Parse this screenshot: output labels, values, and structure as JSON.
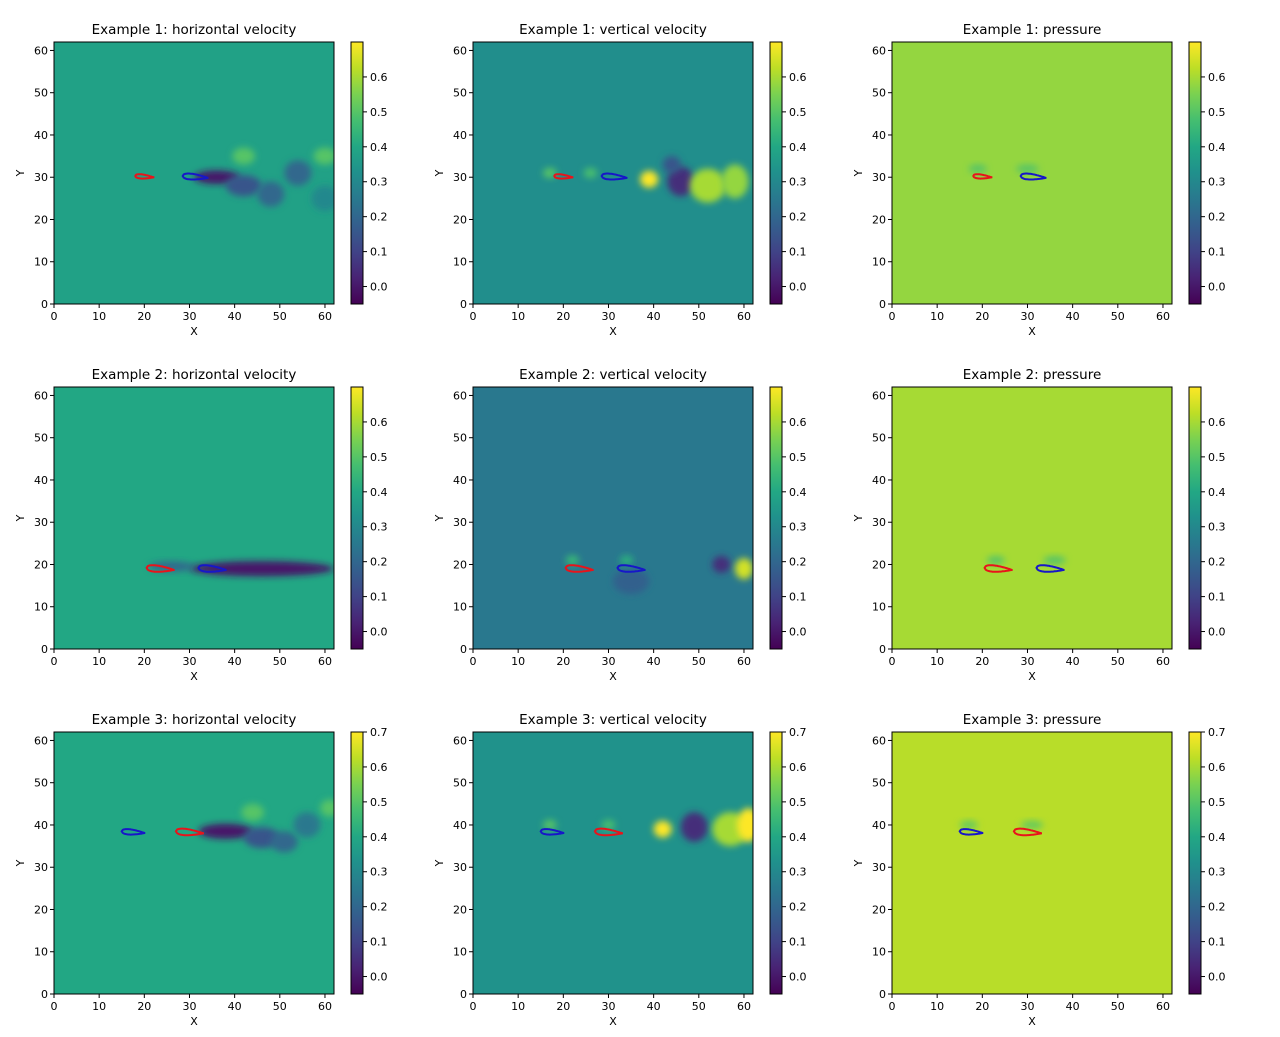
{
  "figure": {
    "xlabel": "X",
    "ylabel": "Y",
    "colormap": "viridis",
    "airfoil_colors": {
      "red": "#e8141b",
      "blue": "#1717c8"
    }
  },
  "chart_data": [
    {
      "type": "heatmap",
      "title": "Example 1: horizontal velocity",
      "xlim": [
        0,
        62
      ],
      "ylim": [
        0,
        62
      ],
      "xticks": [
        0,
        10,
        20,
        30,
        40,
        50,
        60
      ],
      "yticks": [
        0,
        10,
        20,
        30,
        40,
        50,
        60
      ],
      "colorbar": {
        "range": [
          -0.05,
          0.7
        ],
        "ticks": [
          0.0,
          0.1,
          0.2,
          0.3,
          0.4,
          0.5,
          0.6
        ]
      },
      "background_value": 0.38,
      "features": [
        {
          "x": 36,
          "y": 30,
          "rx": 5,
          "ry": 1.6,
          "value": 0.0
        },
        {
          "x": 42,
          "y": 28,
          "rx": 4,
          "ry": 2.5,
          "value": 0.15
        },
        {
          "x": 48,
          "y": 26,
          "rx": 3,
          "ry": 3,
          "value": 0.2
        },
        {
          "x": 54,
          "y": 31,
          "rx": 3,
          "ry": 3,
          "value": 0.2
        },
        {
          "x": 60,
          "y": 25,
          "rx": 3,
          "ry": 3,
          "value": 0.3
        },
        {
          "x": 42,
          "y": 35,
          "rx": 2.5,
          "ry": 2,
          "value": 0.5
        },
        {
          "x": 60,
          "y": 35,
          "rx": 2.5,
          "ry": 2,
          "value": 0.5
        }
      ],
      "airfoils": [
        {
          "color": "red",
          "x": 18,
          "y": 30.3,
          "chord": 4
        },
        {
          "color": "blue",
          "x": 28.5,
          "y": 30.3,
          "chord": 5.5
        }
      ]
    },
    {
      "type": "heatmap",
      "title": "Example 1: vertical velocity",
      "xlim": [
        0,
        62
      ],
      "ylim": [
        0,
        62
      ],
      "xticks": [
        0,
        10,
        20,
        30,
        40,
        50,
        60
      ],
      "yticks": [
        0,
        10,
        20,
        30,
        40,
        50,
        60
      ],
      "colorbar": {
        "range": [
          -0.05,
          0.7
        ],
        "ticks": [
          0.0,
          0.1,
          0.2,
          0.3,
          0.4,
          0.5,
          0.6
        ]
      },
      "background_value": 0.32,
      "features": [
        {
          "x": 39,
          "y": 29.5,
          "rx": 2,
          "ry": 2,
          "value": 0.7
        },
        {
          "x": 46,
          "y": 29,
          "rx": 3,
          "ry": 3.5,
          "value": 0.05
        },
        {
          "x": 44,
          "y": 33,
          "rx": 2,
          "ry": 2,
          "value": 0.15
        },
        {
          "x": 52,
          "y": 28,
          "rx": 4,
          "ry": 4,
          "value": 0.6
        },
        {
          "x": 58,
          "y": 29,
          "rx": 3,
          "ry": 4,
          "value": 0.58
        },
        {
          "x": 17,
          "y": 31,
          "rx": 1.5,
          "ry": 1.2,
          "value": 0.5
        },
        {
          "x": 26,
          "y": 31,
          "rx": 1.5,
          "ry": 1.2,
          "value": 0.48
        }
      ],
      "airfoils": [
        {
          "color": "red",
          "x": 18,
          "y": 30.3,
          "chord": 4
        },
        {
          "color": "blue",
          "x": 28.5,
          "y": 30.3,
          "chord": 5.5
        }
      ]
    },
    {
      "type": "heatmap",
      "title": "Example 1: pressure",
      "xlim": [
        0,
        62
      ],
      "ylim": [
        0,
        62
      ],
      "xticks": [
        0,
        10,
        20,
        30,
        40,
        50,
        60
      ],
      "yticks": [
        0,
        10,
        20,
        30,
        40,
        50,
        60
      ],
      "colorbar": {
        "range": [
          -0.05,
          0.7
        ],
        "ticks": [
          0.0,
          0.1,
          0.2,
          0.3,
          0.4,
          0.5,
          0.6
        ]
      },
      "background_value": 0.58,
      "features": [
        {
          "x": 19,
          "y": 32,
          "rx": 2,
          "ry": 1,
          "value": 0.5
        },
        {
          "x": 30,
          "y": 32,
          "rx": 2.5,
          "ry": 1,
          "value": 0.5
        }
      ],
      "airfoils": [
        {
          "color": "red",
          "x": 18,
          "y": 30.3,
          "chord": 4
        },
        {
          "color": "blue",
          "x": 28.5,
          "y": 30.3,
          "chord": 5.5
        }
      ]
    },
    {
      "type": "heatmap",
      "title": "Example 2: horizontal velocity",
      "xlim": [
        0,
        62
      ],
      "ylim": [
        0,
        62
      ],
      "xticks": [
        0,
        10,
        20,
        30,
        40,
        50,
        60
      ],
      "yticks": [
        0,
        10,
        20,
        30,
        40,
        50,
        60
      ],
      "colorbar": {
        "range": [
          -0.05,
          0.7
        ],
        "ticks": [
          0.0,
          0.1,
          0.2,
          0.3,
          0.4,
          0.5,
          0.6
        ]
      },
      "background_value": 0.4,
      "features": [
        {
          "x": 46,
          "y": 19,
          "rx": 16,
          "ry": 1.8,
          "value": 0.0
        },
        {
          "x": 26,
          "y": 19.5,
          "rx": 5,
          "ry": 1.2,
          "value": 0.2
        }
      ],
      "airfoils": [
        {
          "color": "red",
          "x": 20.5,
          "y": 19.2,
          "chord": 6
        },
        {
          "color": "blue",
          "x": 32,
          "y": 19.2,
          "chord": 6
        }
      ]
    },
    {
      "type": "heatmap",
      "title": "Example 2: vertical velocity",
      "xlim": [
        0,
        62
      ],
      "ylim": [
        0,
        62
      ],
      "xticks": [
        0,
        10,
        20,
        30,
        40,
        50,
        60
      ],
      "yticks": [
        0,
        10,
        20,
        30,
        40,
        50,
        60
      ],
      "colorbar": {
        "range": [
          -0.05,
          0.7
        ],
        "ticks": [
          0.0,
          0.1,
          0.2,
          0.3,
          0.4,
          0.5,
          0.6
        ]
      },
      "background_value": 0.25,
      "features": [
        {
          "x": 55,
          "y": 20,
          "rx": 2,
          "ry": 2,
          "value": 0.05
        },
        {
          "x": 60,
          "y": 19,
          "rx": 2,
          "ry": 2.5,
          "value": 0.65
        },
        {
          "x": 35,
          "y": 16,
          "rx": 4,
          "ry": 3,
          "value": 0.18
        },
        {
          "x": 22,
          "y": 21,
          "rx": 1.5,
          "ry": 1.2,
          "value": 0.45
        },
        {
          "x": 34,
          "y": 21,
          "rx": 1.5,
          "ry": 1.2,
          "value": 0.42
        }
      ],
      "airfoils": [
        {
          "color": "red",
          "x": 20.5,
          "y": 19.2,
          "chord": 6
        },
        {
          "color": "blue",
          "x": 32,
          "y": 19.2,
          "chord": 6
        }
      ]
    },
    {
      "type": "heatmap",
      "title": "Example 2: pressure",
      "xlim": [
        0,
        62
      ],
      "ylim": [
        0,
        62
      ],
      "xticks": [
        0,
        10,
        20,
        30,
        40,
        50,
        60
      ],
      "yticks": [
        0,
        10,
        20,
        30,
        40,
        50,
        60
      ],
      "colorbar": {
        "range": [
          -0.05,
          0.7
        ],
        "ticks": [
          0.0,
          0.1,
          0.2,
          0.3,
          0.4,
          0.5,
          0.6
        ]
      },
      "background_value": 0.6,
      "features": [
        {
          "x": 23,
          "y": 21,
          "rx": 2,
          "ry": 1,
          "value": 0.5
        },
        {
          "x": 36,
          "y": 21,
          "rx": 2.5,
          "ry": 1,
          "value": 0.5
        }
      ],
      "airfoils": [
        {
          "color": "red",
          "x": 20.5,
          "y": 19.2,
          "chord": 6
        },
        {
          "color": "blue",
          "x": 32,
          "y": 19.2,
          "chord": 6
        }
      ]
    },
    {
      "type": "heatmap",
      "title": "Example 3: horizontal velocity",
      "xlim": [
        0,
        62
      ],
      "ylim": [
        0,
        62
      ],
      "xticks": [
        0,
        10,
        20,
        30,
        40,
        50,
        60
      ],
      "yticks": [
        0,
        10,
        20,
        30,
        40,
        50,
        60
      ],
      "colorbar": {
        "range": [
          -0.05,
          0.7
        ],
        "ticks": [
          0.0,
          0.1,
          0.2,
          0.3,
          0.4,
          0.5,
          0.6,
          0.7
        ]
      },
      "background_value": 0.4,
      "features": [
        {
          "x": 38,
          "y": 38.5,
          "rx": 6,
          "ry": 1.8,
          "value": 0.0
        },
        {
          "x": 46,
          "y": 37,
          "rx": 4,
          "ry": 2.5,
          "value": 0.15
        },
        {
          "x": 51,
          "y": 36,
          "rx": 3,
          "ry": 2.5,
          "value": 0.2
        },
        {
          "x": 56,
          "y": 40,
          "rx": 3,
          "ry": 3,
          "value": 0.25
        },
        {
          "x": 44,
          "y": 43,
          "rx": 2.5,
          "ry": 2,
          "value": 0.5
        },
        {
          "x": 61,
          "y": 44,
          "rx": 2,
          "ry": 2,
          "value": 0.5
        }
      ],
      "airfoils": [
        {
          "color": "blue",
          "x": 15,
          "y": 38.5,
          "chord": 5
        },
        {
          "color": "red",
          "x": 27,
          "y": 38.5,
          "chord": 6
        }
      ]
    },
    {
      "type": "heatmap",
      "title": "Example 3: vertical velocity",
      "xlim": [
        0,
        62
      ],
      "ylim": [
        0,
        62
      ],
      "xticks": [
        0,
        10,
        20,
        30,
        40,
        50,
        60
      ],
      "yticks": [
        0,
        10,
        20,
        30,
        40,
        50,
        60
      ],
      "colorbar": {
        "range": [
          -0.05,
          0.7
        ],
        "ticks": [
          0.0,
          0.1,
          0.2,
          0.3,
          0.4,
          0.5,
          0.6,
          0.7
        ]
      },
      "background_value": 0.33,
      "features": [
        {
          "x": 42,
          "y": 39,
          "rx": 2,
          "ry": 2,
          "value": 0.7
        },
        {
          "x": 49,
          "y": 39.5,
          "rx": 3,
          "ry": 3.5,
          "value": 0.05
        },
        {
          "x": 57,
          "y": 39,
          "rx": 4,
          "ry": 4,
          "value": 0.6
        },
        {
          "x": 61,
          "y": 40,
          "rx": 2.5,
          "ry": 4,
          "value": 0.7
        },
        {
          "x": 17,
          "y": 40,
          "rx": 1.5,
          "ry": 1.2,
          "value": 0.5
        },
        {
          "x": 30,
          "y": 40,
          "rx": 1.5,
          "ry": 1.2,
          "value": 0.48
        }
      ],
      "airfoils": [
        {
          "color": "blue",
          "x": 15,
          "y": 38.5,
          "chord": 5
        },
        {
          "color": "red",
          "x": 27,
          "y": 38.5,
          "chord": 6
        }
      ]
    },
    {
      "type": "heatmap",
      "title": "Example 3: pressure",
      "xlim": [
        0,
        62
      ],
      "ylim": [
        0,
        62
      ],
      "xticks": [
        0,
        10,
        20,
        30,
        40,
        50,
        60
      ],
      "yticks": [
        0,
        10,
        20,
        30,
        40,
        50,
        60
      ],
      "colorbar": {
        "range": [
          -0.05,
          0.7
        ],
        "ticks": [
          0.0,
          0.1,
          0.2,
          0.3,
          0.4,
          0.5,
          0.6,
          0.7
        ]
      },
      "background_value": 0.62,
      "features": [
        {
          "x": 17,
          "y": 40,
          "rx": 2,
          "ry": 1,
          "value": 0.52
        },
        {
          "x": 31,
          "y": 40,
          "rx": 2.5,
          "ry": 1,
          "value": 0.52
        }
      ],
      "airfoils": [
        {
          "color": "blue",
          "x": 15,
          "y": 38.5,
          "chord": 5
        },
        {
          "color": "red",
          "x": 27,
          "y": 38.5,
          "chord": 6
        }
      ]
    }
  ]
}
